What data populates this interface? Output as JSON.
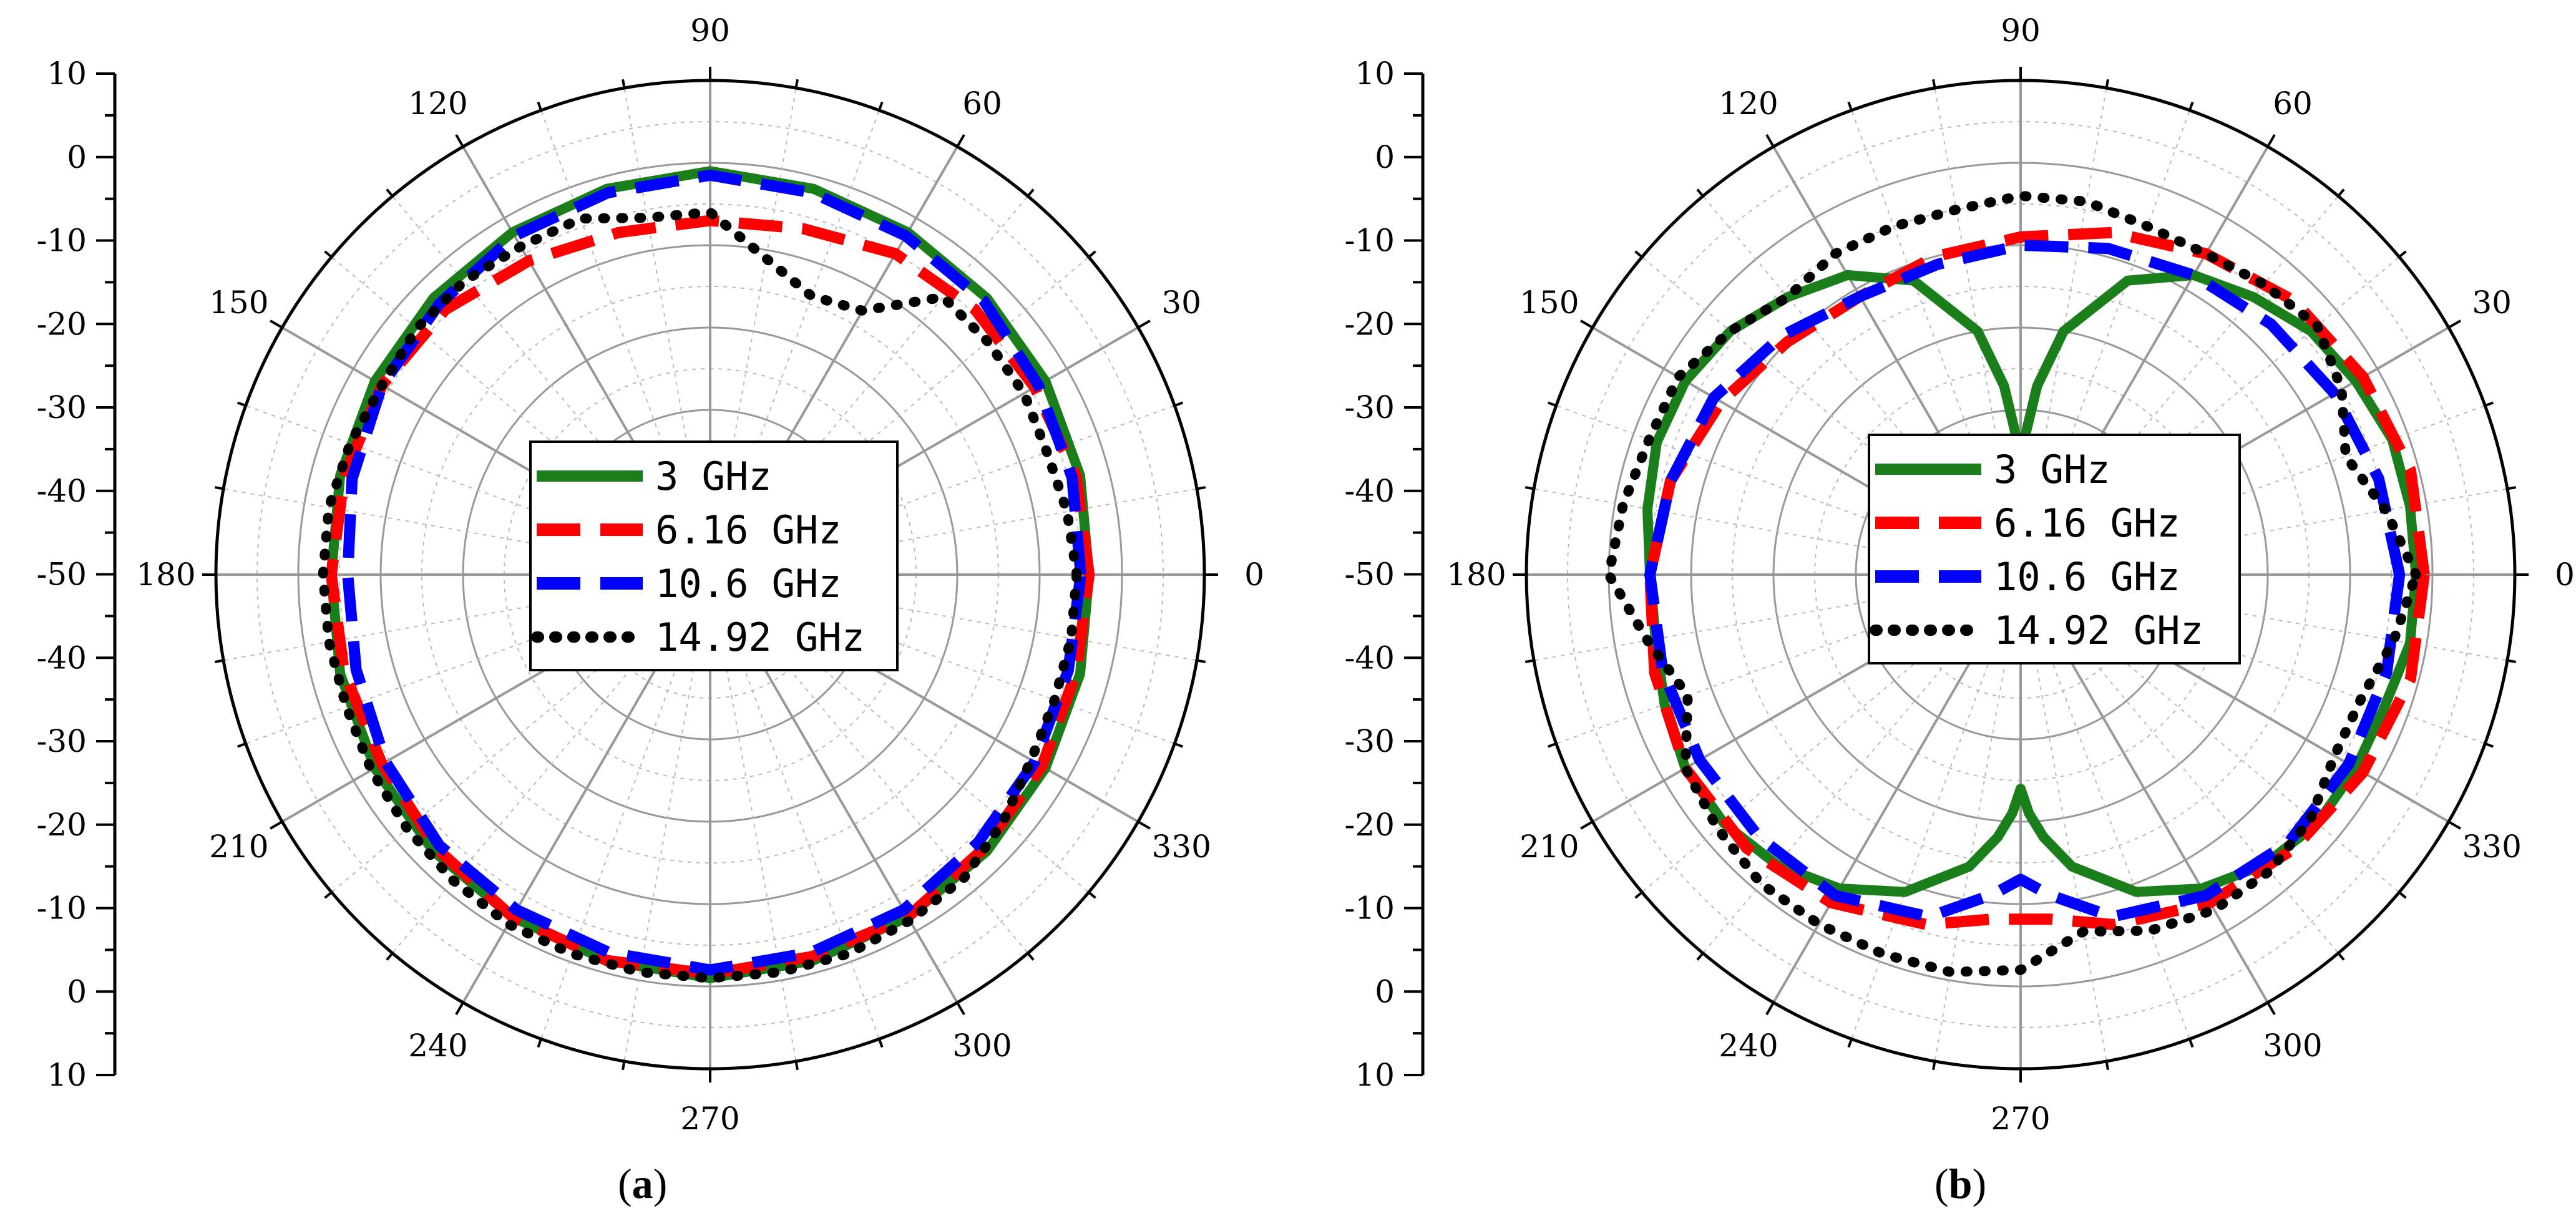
{
  "chart_data": [
    {
      "type": "polar-line",
      "panel_label": "(a)",
      "panel_letter": "a",
      "radial_axis": {
        "range": [
          -50,
          10
        ],
        "major_ticks": [
          10,
          0,
          -10,
          -20,
          -30,
          -40,
          -50,
          -40,
          -30,
          -20,
          -10,
          0,
          10
        ],
        "tick_labels": [
          "10",
          "0",
          "-10",
          "-20",
          "-30",
          "-40",
          "-50",
          "-40",
          "-30",
          "-20",
          "-10",
          "0",
          "10"
        ]
      },
      "angular_axis": {
        "unit": "degrees",
        "ticks": [
          0,
          30,
          60,
          90,
          120,
          150,
          180,
          210,
          240,
          270,
          300,
          330
        ],
        "tick_labels": [
          "0",
          "30",
          "60",
          "90",
          "120",
          "150",
          "180",
          "210",
          "240",
          "270",
          "300",
          "330"
        ]
      },
      "grid": true,
      "legend_position": "center",
      "series": [
        {
          "name": "3 GHz",
          "color": "#1a7f1a",
          "style": "solid",
          "angles": [
            0,
            15,
            30,
            45,
            60,
            75,
            90,
            105,
            120,
            135,
            150,
            165,
            180,
            195,
            210,
            225,
            240,
            255,
            270,
            285,
            300,
            315,
            330,
            345
          ],
          "values": [
            -4,
            -3.5,
            -3,
            -2.5,
            -2,
            -1.5,
            -1,
            -1.5,
            -2,
            -2.5,
            -3,
            -3.5,
            -4,
            -3.5,
            -3,
            -2.5,
            -2,
            -1.5,
            -1,
            -1.5,
            -2,
            -2.5,
            -3,
            -3.5
          ]
        },
        {
          "name": "6.16 GHz",
          "color": "#ff0000",
          "style": "dashed",
          "angles": [
            0,
            15,
            30,
            45,
            60,
            75,
            90,
            105,
            120,
            135,
            150,
            165,
            180,
            195,
            210,
            225,
            240,
            255,
            270,
            285,
            300,
            315,
            330,
            345
          ],
          "values": [
            -4,
            -4,
            -4.5,
            -4.5,
            -5,
            -6.5,
            -7,
            -7,
            -6,
            -4.5,
            -4,
            -4,
            -4,
            -4,
            -4,
            -3,
            -2,
            -1.5,
            -1.5,
            -2,
            -2,
            -3,
            -3.5,
            -4
          ]
        },
        {
          "name": "10.6 GHz",
          "color": "#0000ff",
          "style": "dashed",
          "angles": [
            0,
            15,
            30,
            45,
            60,
            75,
            90,
            105,
            120,
            135,
            150,
            165,
            180,
            195,
            210,
            225,
            240,
            255,
            270,
            285,
            300,
            315,
            330,
            345
          ],
          "values": [
            -5,
            -4.5,
            -4,
            -3,
            -2.5,
            -2,
            -1.5,
            -2,
            -2.5,
            -3.5,
            -4,
            -5,
            -6,
            -5.5,
            -4.5,
            -3.5,
            -3,
            -2.5,
            -2,
            -2.5,
            -3,
            -4,
            -4.5,
            -5
          ]
        },
        {
          "name": "14.92 GHz",
          "color": "#000000",
          "style": "dotted",
          "angles": [
            0,
            10,
            20,
            30,
            40,
            50,
            60,
            70,
            80,
            90,
            100,
            110,
            120,
            130,
            140,
            150,
            160,
            170,
            180,
            190,
            200,
            210,
            220,
            230,
            240,
            250,
            260,
            270,
            280,
            290,
            300,
            310,
            320,
            330,
            340,
            350
          ],
          "values": [
            -5.5,
            -6,
            -6.5,
            -6,
            -6,
            -6,
            -13,
            -14,
            -11,
            -6,
            -6,
            -4,
            -4,
            -3.5,
            -3.5,
            -4,
            -3.5,
            -3,
            -3,
            -3,
            -3,
            -2.5,
            -2,
            -1.5,
            -1,
            -1,
            -1,
            -1,
            -1,
            -1,
            -1.5,
            -2,
            -3.5,
            -5,
            -5.5,
            -5.5
          ]
        }
      ]
    },
    {
      "type": "polar-line",
      "panel_label": "(b)",
      "panel_letter": "b",
      "radial_axis": {
        "range": [
          -50,
          10
        ],
        "major_ticks": [
          10,
          0,
          -10,
          -20,
          -30,
          -40,
          -50,
          -40,
          -30,
          -20,
          -10,
          0,
          10
        ],
        "tick_labels": [
          "10",
          "0",
          "-10",
          "-20",
          "-30",
          "-40",
          "-50",
          "-40",
          "-30",
          "-20",
          "-10",
          "0",
          "10"
        ]
      },
      "angular_axis": {
        "unit": "degrees",
        "ticks": [
          0,
          30,
          60,
          90,
          120,
          150,
          180,
          210,
          240,
          270,
          300,
          330
        ],
        "tick_labels": [
          "0",
          "30",
          "60",
          "90",
          "120",
          "150",
          "180",
          "210",
          "240",
          "270",
          "300",
          "330"
        ]
      },
      "grid": true,
      "legend_position": "center",
      "series": [
        {
          "name": "3 GHz",
          "color": "#1a7f1a",
          "style": "solid",
          "angles": [
            0,
            10,
            20,
            30,
            40,
            50,
            60,
            70,
            80,
            85,
            88,
            90,
            92,
            95,
            100,
            110,
            120,
            130,
            140,
            150,
            160,
            170,
            180,
            190,
            200,
            210,
            220,
            230,
            240,
            250,
            260,
            265,
            268,
            270,
            272,
            275,
            280,
            290,
            300,
            310,
            320,
            330,
            340,
            350
          ],
          "values": [
            -2,
            -2,
            -2,
            -3,
            -4,
            -6,
            -8,
            -12,
            -20,
            -27,
            -33,
            -37,
            -33,
            -27,
            -20,
            -12,
            -8,
            -6,
            -4,
            -3,
            -3,
            -4,
            -5,
            -5,
            -4,
            -3,
            -3,
            -4,
            -6,
            -9,
            -14,
            -18,
            -21,
            -24,
            -21,
            -18,
            -14,
            -9,
            -6,
            -4,
            -3,
            -3,
            -3,
            -2
          ]
        },
        {
          "name": "6.16 GHz",
          "color": "#ff0000",
          "style": "dashed",
          "angles": [
            0,
            15,
            30,
            45,
            60,
            75,
            90,
            105,
            120,
            135,
            150,
            165,
            180,
            195,
            210,
            225,
            240,
            255,
            265,
            275,
            285,
            300,
            315,
            330,
            345
          ],
          "values": [
            -1,
            -1,
            -2,
            -3,
            -5,
            -7,
            -9,
            -10,
            -11,
            -10,
            -8,
            -6,
            -5,
            -4,
            -3,
            -3,
            -4,
            -6,
            -8,
            -8,
            -6,
            -4,
            -3,
            -2,
            -1
          ]
        },
        {
          "name": "10.6 GHz",
          "color": "#0000ff",
          "style": "dashed",
          "angles": [
            0,
            15,
            30,
            45,
            60,
            75,
            90,
            105,
            120,
            135,
            150,
            165,
            180,
            195,
            210,
            225,
            240,
            255,
            265,
            270,
            275,
            285,
            300,
            315,
            330,
            345
          ],
          "values": [
            -4,
            -5,
            -6,
            -7,
            -8,
            -9,
            -10,
            -11,
            -11,
            -9,
            -7,
            -6,
            -5,
            -5,
            -5,
            -5,
            -5,
            -7,
            -11,
            -13,
            -11,
            -7,
            -5,
            -4,
            -4,
            -4
          ]
        },
        {
          "name": "14.92 GHz",
          "color": "#000000",
          "style": "dotted",
          "angles": [
            0,
            10,
            20,
            30,
            40,
            50,
            60,
            70,
            80,
            90,
            100,
            110,
            120,
            130,
            140,
            150,
            160,
            170,
            180,
            190,
            200,
            210,
            220,
            230,
            240,
            250,
            260,
            270,
            280,
            290,
            300,
            310,
            320,
            330,
            340,
            350
          ],
          "values": [
            -2,
            -5,
            -8,
            -5,
            -3,
            -4,
            -5,
            -5,
            -4,
            -4,
            -5,
            -5,
            -5,
            -6,
            -4,
            -2,
            -2,
            -1,
            0,
            -4,
            -7,
            -3,
            -2,
            -1,
            -1,
            -1,
            -1,
            -2,
            -6,
            -4,
            -3,
            -3,
            -4,
            -6,
            -6,
            -4
          ]
        }
      ]
    }
  ]
}
